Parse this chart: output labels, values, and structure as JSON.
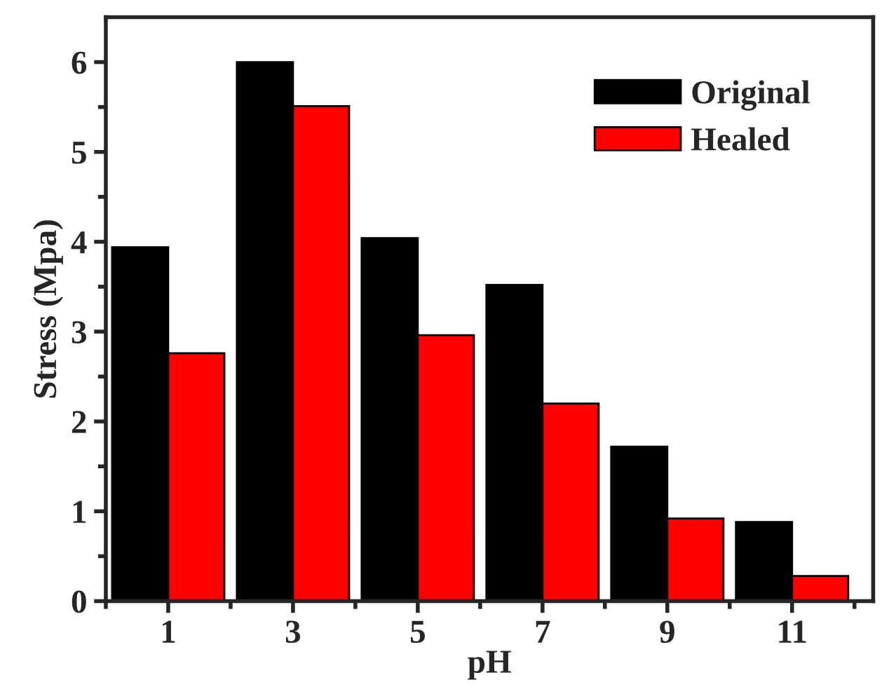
{
  "chart_data": {
    "type": "bar",
    "xlabel": "pH",
    "ylabel": "Stress (Mpa)",
    "categories": [
      "1",
      "3",
      "5",
      "7",
      "9",
      "11"
    ],
    "series": [
      {
        "name": "Original",
        "color": "#000000",
        "values": [
          3.94,
          6.0,
          4.04,
          3.52,
          1.72,
          0.88
        ]
      },
      {
        "name": "Healed",
        "color": "#ff0000",
        "values": [
          2.76,
          5.51,
          2.96,
          2.2,
          0.92,
          0.28
        ]
      }
    ],
    "ylim": [
      0,
      6.5
    ],
    "yticks": [
      0,
      1,
      2,
      3,
      4,
      5,
      6
    ],
    "grid": false,
    "legend": "top right"
  }
}
